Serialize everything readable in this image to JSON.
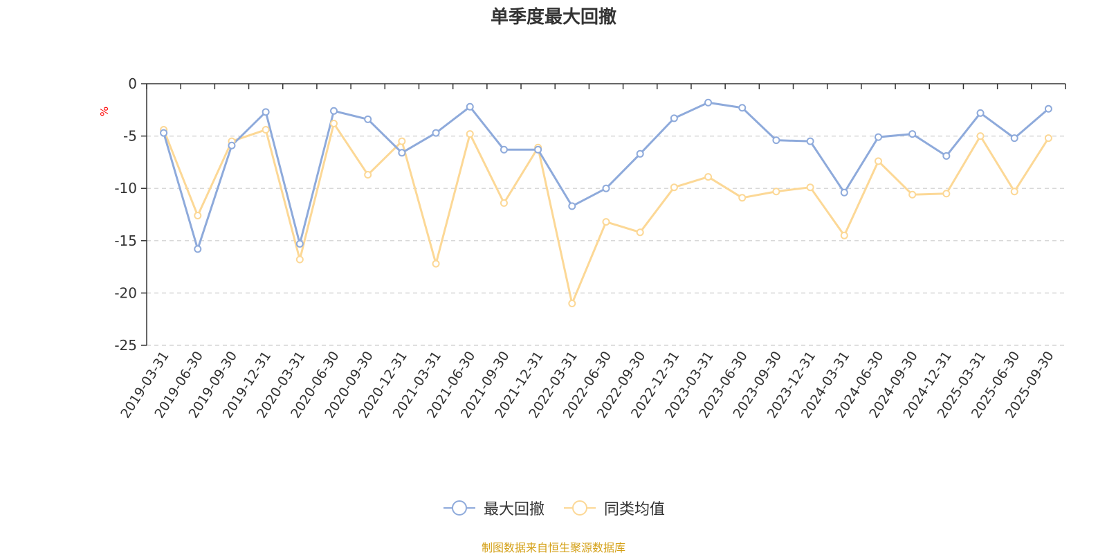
{
  "chart_data": {
    "type": "line",
    "title": "单季度最大回撤",
    "ylabel": "%",
    "ylim": [
      -25,
      0
    ],
    "yticks": [
      0,
      -5,
      -10,
      -15,
      -20,
      -25
    ],
    "grid": true,
    "legend_position": "bottom",
    "categories": [
      "2019-03-31",
      "2019-06-30",
      "2019-09-30",
      "2019-12-31",
      "2020-03-31",
      "2020-06-30",
      "2020-09-30",
      "2020-12-31",
      "2021-03-31",
      "2021-06-30",
      "2021-09-30",
      "2021-12-31",
      "2022-03-31",
      "2022-06-30",
      "2022-09-30",
      "2022-12-31",
      "2023-03-31",
      "2023-06-30",
      "2023-09-30",
      "2023-12-31",
      "2024-03-31",
      "2024-06-30",
      "2024-09-30",
      "2024-12-31",
      "2025-03-31",
      "2025-06-30",
      "2025-09-30"
    ],
    "series": [
      {
        "name": "最大回撤",
        "color": "#8eaadb",
        "values": [
          -4.7,
          -15.8,
          -5.9,
          -2.7,
          -15.3,
          -2.6,
          -3.4,
          -6.6,
          -4.7,
          -2.2,
          -6.3,
          -6.3,
          -11.7,
          -10.0,
          -6.7,
          -3.3,
          -1.8,
          -2.3,
          -5.4,
          -5.5,
          -10.4,
          -5.1,
          -4.8,
          -6.9,
          -2.8,
          -5.2,
          -2.4
        ]
      },
      {
        "name": "同类均值",
        "color": "#fcd896",
        "values": [
          -4.4,
          -12.6,
          -5.5,
          -4.4,
          -16.8,
          -3.8,
          -8.7,
          -5.5,
          -17.2,
          -4.8,
          -11.4,
          -6.1,
          -21.0,
          -13.2,
          -14.2,
          -9.9,
          -8.9,
          -10.9,
          -10.3,
          -9.9,
          -14.5,
          -7.4,
          -10.6,
          -10.5,
          -5.0,
          -10.3,
          -5.2
        ]
      }
    ]
  },
  "legend": [
    {
      "label": "最大回撤",
      "color": "#8eaadb"
    },
    {
      "label": "同类均值",
      "color": "#fcd896"
    }
  ],
  "source_note": "制图数据来自恒生聚源数据库"
}
